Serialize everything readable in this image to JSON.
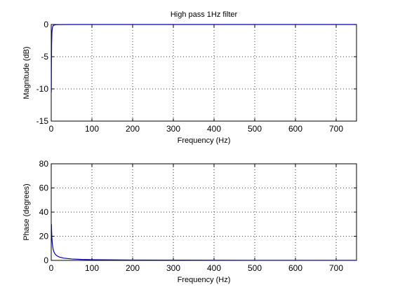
{
  "colors": {
    "background": "#ffffff",
    "axes": "#000000",
    "grid": "#000000",
    "line": "#0000aa"
  },
  "chart_data": [
    {
      "type": "line",
      "title": "High pass 1Hz filter",
      "xlabel": "Frequency (Hz)",
      "ylabel": "Magnitude (dB)",
      "xlim": [
        0,
        750
      ],
      "ylim": [
        -15,
        0
      ],
      "xticks": [
        0,
        100,
        200,
        300,
        400,
        500,
        600,
        700
      ],
      "yticks": [
        -15,
        -10,
        -5,
        0
      ],
      "grid": true,
      "series": [
        {
          "x": [
            0.3,
            0.5,
            1,
            1.5,
            2,
            3,
            4,
            5,
            8,
            12,
            20,
            50,
            100,
            200,
            300,
            400,
            500,
            600,
            700,
            750
          ],
          "values": [
            -10.5,
            -6.2,
            -3.0,
            -1.6,
            -0.97,
            -0.46,
            -0.26,
            -0.17,
            -0.07,
            -0.03,
            -0.01,
            0,
            0,
            0,
            0,
            0,
            0,
            0,
            0,
            0
          ]
        }
      ]
    },
    {
      "type": "line",
      "title": "",
      "xlabel": "Frequency (Hz)",
      "ylabel": "Phase (degrees)",
      "xlim": [
        0,
        750
      ],
      "ylim": [
        0,
        80
      ],
      "xticks": [
        0,
        100,
        200,
        300,
        400,
        500,
        600,
        700
      ],
      "yticks": [
        0,
        20,
        40,
        60,
        80
      ],
      "grid": true,
      "series": [
        {
          "x": [
            0.5,
            1,
            1.5,
            2,
            3,
            4,
            5,
            7,
            10,
            15,
            20,
            30,
            50,
            75,
            100,
            200,
            300,
            400,
            500,
            600,
            700,
            750
          ],
          "values": [
            30,
            24,
            20,
            17,
            13,
            10.5,
            8.8,
            6.8,
            5.0,
            3.6,
            2.8,
            1.9,
            1.2,
            0.8,
            0.6,
            0.3,
            0.2,
            0.15,
            0.12,
            0.1,
            0.08,
            0.07
          ]
        }
      ]
    }
  ]
}
